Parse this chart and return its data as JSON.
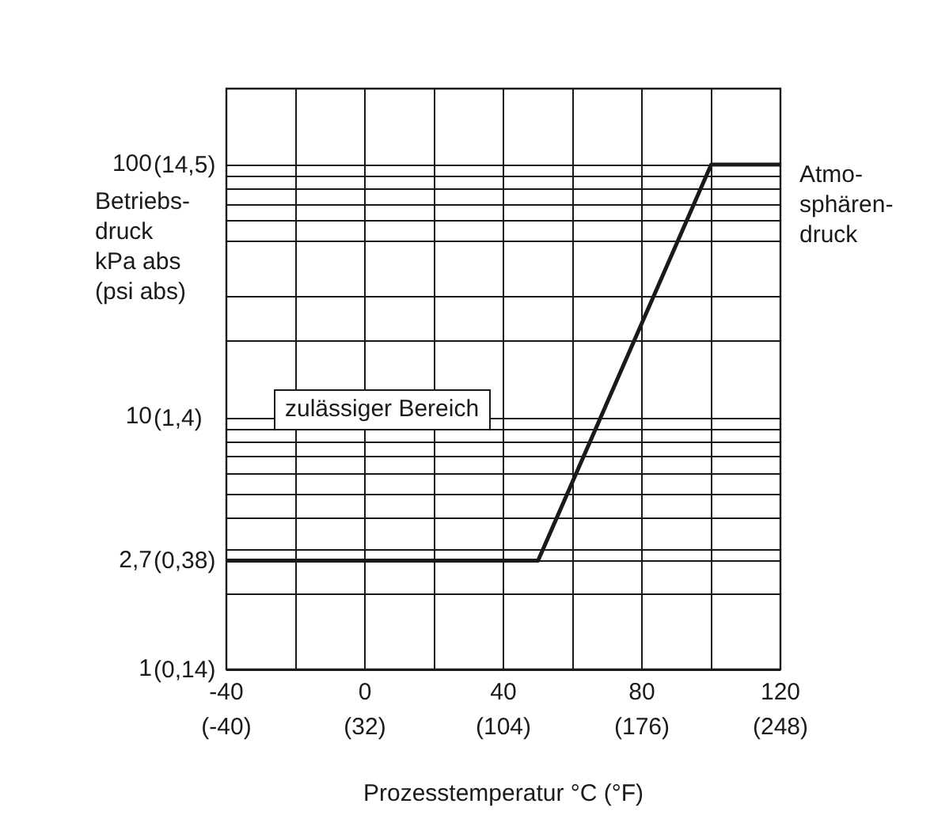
{
  "chart_data": {
    "type": "line",
    "xlabel": "Prozesstemperatur °C (°F)",
    "ylabel": "Betriebs-\ndruck\nkPa abs\n(psi abs)",
    "annotations": [
      "zulässiger Bereich",
      "Atmo-\nsphären-\ndruck",
      "(0,14)",
      "(0,38)",
      "(1,4)",
      "(14,5)"
    ],
    "x": [
      -40,
      50,
      100,
      120
    ],
    "series": [
      {
        "color": "#1a1a1a",
        "values": [
          2.7,
          2.7,
          100,
          100
        ]
      }
    ],
    "xlim": [
      -40,
      120
    ],
    "xticks": [
      -40,
      {
        "value": -20,
        "label": null
      },
      0,
      {
        "value": 20,
        "label": null
      },
      40,
      {
        "value": 60,
        "label": null
      },
      80,
      {
        "value": 100,
        "label": null
      },
      120
    ],
    "x2lim": [
      -40,
      248
    ],
    "x2ticks": [
      {
        "value": -40,
        "label": "(-40)"
      },
      {
        "value": 32,
        "label": "(32)"
      },
      {
        "value": 104,
        "label": "(104)"
      },
      {
        "value": 176,
        "label": "(176)"
      },
      {
        "value": 248,
        "label": "(248)"
      }
    ],
    "ylim": [
      1,
      200
    ],
    "yticks": [
      1,
      {
        "value": 2,
        "label": null
      },
      {
        "value": 2.7,
        "label": "2,7"
      },
      {
        "value": 3,
        "label": null
      },
      {
        "value": 4,
        "label": null
      },
      {
        "value": 5,
        "label": null
      },
      {
        "value": 6,
        "label": null
      },
      {
        "value": 7,
        "label": null
      },
      {
        "value": 8,
        "label": null
      },
      {
        "value": 9,
        "label": null
      },
      10,
      {
        "value": 20,
        "label": null
      },
      {
        "value": 30,
        "label": null
      },
      {
        "value": 50,
        "label": null
      },
      {
        "value": 60,
        "label": null
      },
      {
        "value": 70,
        "label": null
      },
      {
        "value": 80,
        "label": null
      },
      {
        "value": 90,
        "label": null
      },
      100
    ],
    "log": "y",
    "grid": true,
    "legend": false,
    "marker": "none",
    "line_style": "solid"
  }
}
